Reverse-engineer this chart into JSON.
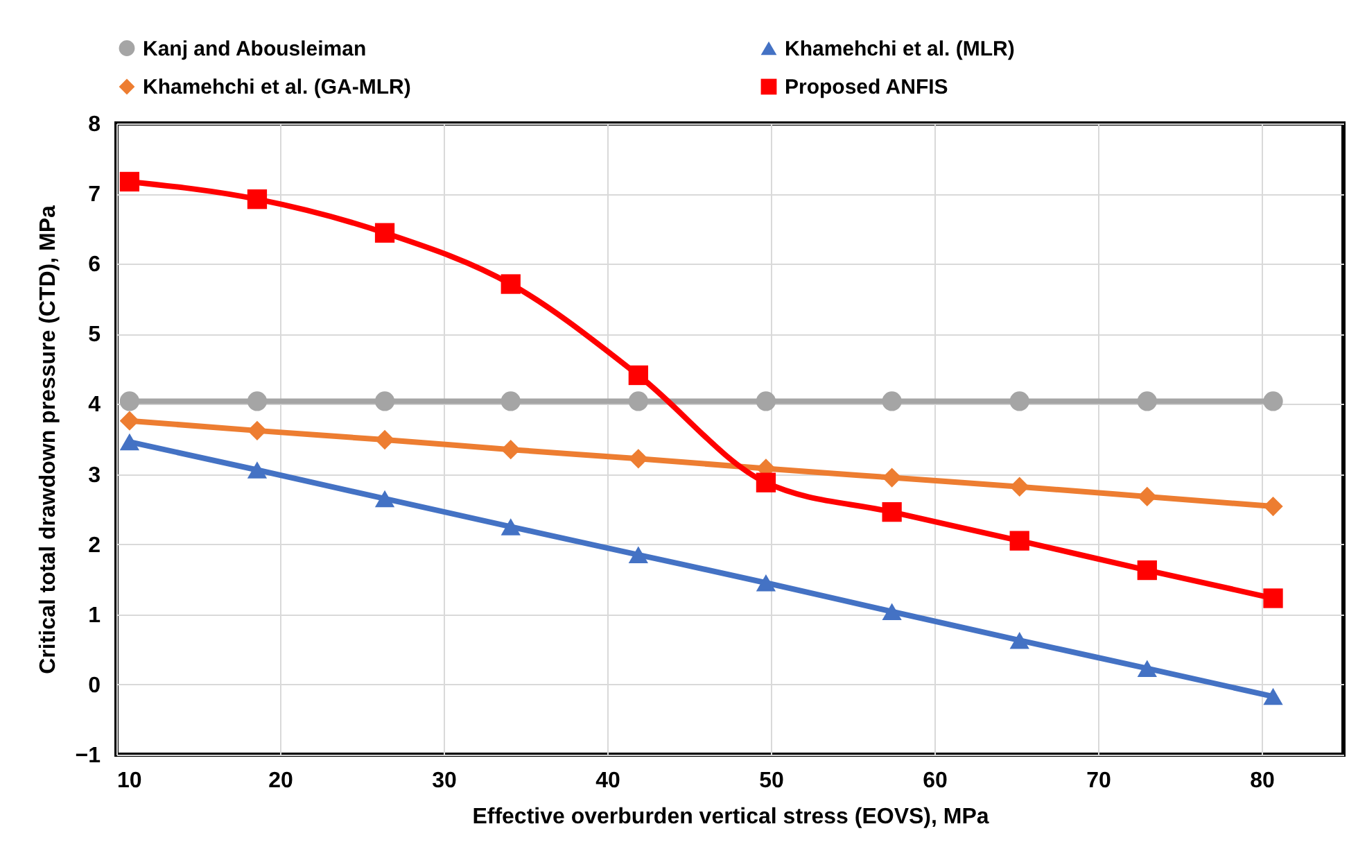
{
  "chart_data": {
    "type": "line",
    "xlabel": "Effective overburden vertical stress (EOVS), MPa",
    "ylabel": "Critical total drawdown pressure (CTD), MPa",
    "x": [
      10.8,
      18.6,
      26.4,
      34.1,
      41.9,
      49.7,
      57.4,
      65.2,
      73.0,
      80.7
    ],
    "series": [
      {
        "name": "Kanj and Abousleiman",
        "color": "#a5a5a5",
        "marker": "circle",
        "values": [
          4.04,
          4.04,
          4.04,
          4.04,
          4.04,
          4.04,
          4.04,
          4.04,
          4.04,
          4.04
        ]
      },
      {
        "name": "Khamehchi et al. (MLR)",
        "color": "#4472c4",
        "marker": "triangle",
        "values": [
          3.46,
          3.06,
          2.65,
          2.25,
          1.85,
          1.45,
          1.04,
          0.63,
          0.23,
          -0.17
        ]
      },
      {
        "name": "Khamehchi et al. (GA-MLR)",
        "color": "#ed7d31",
        "marker": "diamond",
        "values": [
          3.76,
          3.62,
          3.49,
          3.35,
          3.22,
          3.08,
          2.95,
          2.82,
          2.68,
          2.54
        ]
      },
      {
        "name": "Proposed ANFIS",
        "color": "#ff0000",
        "marker": "square",
        "values": [
          7.17,
          6.92,
          6.44,
          5.71,
          4.41,
          2.88,
          2.46,
          2.05,
          1.63,
          1.23
        ]
      }
    ],
    "xlim": [
      10,
      85
    ],
    "xticks": [
      10,
      20,
      30,
      40,
      50,
      60,
      70,
      80
    ],
    "ylim": [
      -1,
      8
    ],
    "yticks": [
      -1,
      0,
      1,
      2,
      3,
      4,
      5,
      6,
      7,
      8
    ],
    "grid": true,
    "legend": "top",
    "line_style": "solid"
  }
}
